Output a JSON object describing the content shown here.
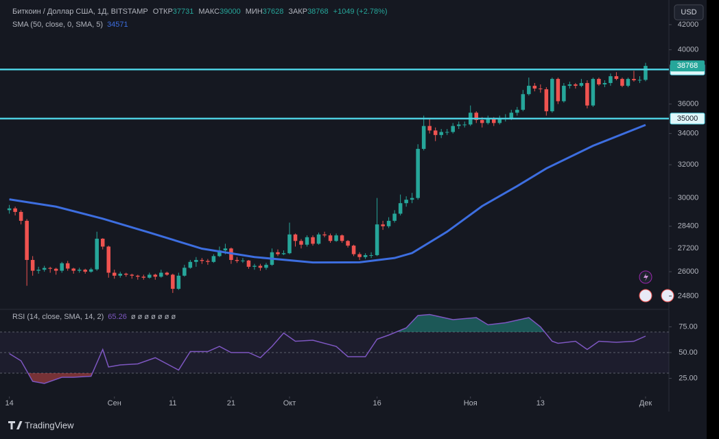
{
  "ui": {
    "currency_button": "USD",
    "brand": "TradingView"
  },
  "chart_data": [
    {
      "type": "candlestick",
      "title": "Биткоин / Доллар США, 1Д, BITSTAMP",
      "stats": [
        {
          "label": "ОТКР",
          "value": 37731
        },
        {
          "label": "МАКС",
          "value": 39000
        },
        {
          "label": "МИН",
          "value": 37628
        },
        {
          "label": "ЗАКР",
          "value": 38768
        }
      ],
      "change": {
        "value": 1049,
        "label": "+1049 (+2.78%)"
      },
      "xlim": [
        -1.6,
        113
      ],
      "xticks": [
        {
          "value": 0,
          "label": "14"
        },
        {
          "value": 18,
          "label": "Сен"
        },
        {
          "value": 28,
          "label": "11"
        },
        {
          "value": 38,
          "label": "21"
        },
        {
          "value": 48,
          "label": "Окт"
        },
        {
          "value": 63,
          "label": "16"
        },
        {
          "value": 79,
          "label": "Ноя"
        },
        {
          "value": 91,
          "label": "13"
        },
        {
          "value": 109,
          "label": "Дек"
        }
      ],
      "ylim": [
        24200,
        42900
      ],
      "log_scale": true,
      "grid": false,
      "yticks": [
        42000,
        40000,
        36000,
        34000,
        32000,
        30000,
        28400,
        27200,
        26000,
        24800
      ],
      "up_color": "#26a69a",
      "down_color": "#ef5350",
      "candles": [
        [
          29300,
          29600,
          29100,
          29400
        ],
        [
          29400,
          29500,
          29000,
          29200
        ],
        [
          29200,
          29300,
          28500,
          28700
        ],
        [
          28700,
          28800,
          25300,
          26600
        ],
        [
          26600,
          26800,
          25800,
          26050
        ],
        [
          26050,
          26250,
          25900,
          26100
        ],
        [
          26100,
          26300,
          26000,
          26190
        ],
        [
          26190,
          26250,
          25950,
          26150
        ],
        [
          26150,
          26200,
          25850,
          26050
        ],
        [
          26050,
          26500,
          25950,
          26430
        ],
        [
          26430,
          26550,
          26050,
          26160
        ],
        [
          26160,
          26200,
          25900,
          26050
        ],
        [
          26050,
          26200,
          25950,
          26100
        ],
        [
          26100,
          26150,
          25900,
          26000
        ],
        [
          26000,
          26200,
          25950,
          26120
        ],
        [
          26120,
          28100,
          26050,
          27720
        ],
        [
          27720,
          27750,
          27150,
          27300
        ],
        [
          27300,
          27350,
          25700,
          25950
        ],
        [
          25950,
          26100,
          25650,
          25800
        ],
        [
          25800,
          26000,
          25700,
          25900
        ],
        [
          25900,
          25950,
          25750,
          25850
        ],
        [
          25850,
          25900,
          25650,
          25800
        ],
        [
          25800,
          25850,
          25600,
          25750
        ],
        [
          25750,
          25850,
          25600,
          25700
        ],
        [
          25700,
          25950,
          25650,
          25850
        ],
        [
          25850,
          25900,
          25600,
          25750
        ],
        [
          25750,
          26100,
          25700,
          25950
        ],
        [
          25950,
          26000,
          25800,
          25850
        ],
        [
          25850,
          25900,
          24950,
          25150
        ],
        [
          25150,
          25950,
          25100,
          25800
        ],
        [
          25800,
          26350,
          25750,
          26200
        ],
        [
          26200,
          26600,
          26150,
          26500
        ],
        [
          26500,
          26750,
          26250,
          26600
        ],
        [
          26600,
          26700,
          26400,
          26550
        ],
        [
          26550,
          26650,
          26350,
          26500
        ],
        [
          26500,
          26900,
          26450,
          26800
        ],
        [
          26800,
          27300,
          26750,
          27100
        ],
        [
          27100,
          27450,
          26900,
          27200
        ],
        [
          27200,
          27250,
          26400,
          26600
        ],
        [
          26600,
          26750,
          26450,
          26550
        ],
        [
          26550,
          26700,
          26450,
          26570
        ],
        [
          26570,
          26600,
          26150,
          26250
        ],
        [
          26250,
          26400,
          26100,
          26300
        ],
        [
          26300,
          26400,
          26050,
          26200
        ],
        [
          26200,
          26450,
          26100,
          26350
        ],
        [
          26350,
          27200,
          26300,
          27000
        ],
        [
          27000,
          27150,
          26800,
          26900
        ],
        [
          26900,
          27100,
          26850,
          26950
        ],
        [
          26950,
          28600,
          26900,
          27950
        ],
        [
          27950,
          28000,
          27300,
          27600
        ],
        [
          27600,
          27700,
          27200,
          27400
        ],
        [
          27400,
          27900,
          27300,
          27800
        ],
        [
          27800,
          27900,
          27350,
          27450
        ],
        [
          27450,
          28050,
          27400,
          27950
        ],
        [
          27950,
          28100,
          27800,
          27900
        ],
        [
          27900,
          28000,
          27500,
          27600
        ],
        [
          27600,
          28000,
          27550,
          27900
        ],
        [
          27900,
          27950,
          27500,
          27600
        ],
        [
          27600,
          27650,
          27250,
          27350
        ],
        [
          27350,
          27400,
          26800,
          26900
        ],
        [
          26900,
          27000,
          26600,
          26750
        ],
        [
          26750,
          26950,
          26650,
          26850
        ],
        [
          26850,
          27000,
          26700,
          26850
        ],
        [
          26850,
          30000,
          26800,
          28500
        ],
        [
          28500,
          28700,
          28200,
          28400
        ],
        [
          28400,
          28900,
          28300,
          28700
        ],
        [
          28700,
          29300,
          28600,
          29100
        ],
        [
          29100,
          30200,
          29000,
          29700
        ],
        [
          29700,
          30100,
          29500,
          29900
        ],
        [
          29900,
          30300,
          29700,
          30000
        ],
        [
          30000,
          33300,
          29900,
          33000
        ],
        [
          33000,
          35200,
          32900,
          34500
        ],
        [
          34500,
          35000,
          34000,
          34200
        ],
        [
          34200,
          34400,
          33500,
          33900
        ],
        [
          33900,
          34300,
          33700,
          34100
        ],
        [
          34100,
          34300,
          33900,
          34100
        ],
        [
          34100,
          34700,
          34000,
          34500
        ],
        [
          34500,
          34800,
          34300,
          34600
        ],
        [
          34600,
          34800,
          34400,
          34600
        ],
        [
          34600,
          35900,
          34500,
          35400
        ],
        [
          35400,
          35500,
          34700,
          34900
        ],
        [
          34900,
          35100,
          34400,
          34700
        ],
        [
          34700,
          35200,
          34600,
          35000
        ],
        [
          35000,
          35100,
          34500,
          34700
        ],
        [
          34700,
          35200,
          34600,
          35000
        ],
        [
          35000,
          35300,
          34800,
          35000
        ],
        [
          35000,
          35600,
          34900,
          35400
        ],
        [
          35400,
          35800,
          35200,
          35600
        ],
        [
          35600,
          37000,
          35500,
          36700
        ],
        [
          36700,
          37900,
          36600,
          37300
        ],
        [
          37300,
          37500,
          36900,
          37100
        ],
        [
          37100,
          37400,
          36800,
          37050
        ],
        [
          37050,
          37200,
          35200,
          35500
        ],
        [
          35500,
          37900,
          35400,
          37800
        ],
        [
          37800,
          37900,
          36000,
          36200
        ],
        [
          36200,
          37500,
          36100,
          37300
        ],
        [
          37300,
          37600,
          37100,
          37400
        ],
        [
          37400,
          37500,
          37100,
          37300
        ],
        [
          37300,
          37800,
          37200,
          37500
        ],
        [
          37500,
          37700,
          35700,
          35900
        ],
        [
          35900,
          37900,
          35800,
          37800
        ],
        [
          37800,
          37900,
          37300,
          37400
        ],
        [
          37400,
          37700,
          37200,
          37500
        ],
        [
          37500,
          38200,
          37300,
          38000
        ],
        [
          38000,
          38300,
          37700,
          37800
        ],
        [
          37800,
          37900,
          37200,
          37300
        ],
        [
          37300,
          37900,
          37200,
          37800
        ],
        [
          37800,
          38400,
          37600,
          37700
        ],
        [
          37700,
          38000,
          37500,
          37731
        ],
        [
          37731,
          39000,
          37628,
          38768
        ]
      ],
      "sma": {
        "name": "SMA (50, close, 0, SMA, 5)",
        "last_value": 34571,
        "color": "#3d6ee0",
        "x": [
          0,
          8,
          16,
          24,
          33,
          42,
          52,
          60,
          66,
          69,
          75,
          81,
          87,
          92,
          100,
          109
        ],
        "values": [
          29920,
          29500,
          28820,
          28050,
          27190,
          26750,
          26470,
          26480,
          26700,
          26960,
          28100,
          29530,
          30700,
          31770,
          33200,
          34571
        ]
      },
      "levels": [
        {
          "value": 38500,
          "color": "#4dd0e1"
        },
        {
          "value": 35000,
          "color": "#4dd0e1"
        }
      ],
      "last_price": 38768
    },
    {
      "type": "line",
      "title": "RSI (14, close, SMA, 14, 2)",
      "last_value": 65.26,
      "placeholders": "ø ø ø ø ø ø ø",
      "xlim": [
        -1.6,
        113
      ],
      "ylim": [
        10,
        90
      ],
      "yticks": [
        {
          "value": 75,
          "label": "75.00"
        },
        {
          "value": 50,
          "label": "50.00"
        },
        {
          "value": 25,
          "label": "25.00"
        }
      ],
      "levels": [
        30,
        50,
        70
      ],
      "series": [
        {
          "color": "#7e57c2",
          "x": [
            0,
            2,
            4,
            6,
            9,
            11,
            14,
            16,
            17,
            19,
            22,
            25,
            29,
            31,
            34,
            36,
            38,
            41,
            43,
            45,
            47,
            49,
            52,
            56,
            58,
            61,
            63,
            65,
            68,
            70,
            72,
            76,
            80,
            82,
            85,
            89,
            91,
            93,
            94,
            97,
            99,
            101,
            104,
            107,
            109
          ],
          "values": [
            49,
            42,
            22,
            20,
            26,
            26,
            27,
            53,
            36,
            38,
            39,
            45,
            33,
            51,
            51,
            56,
            50,
            50,
            45,
            56,
            69,
            61,
            62,
            56,
            46,
            46,
            63,
            67,
            74,
            86,
            87,
            82,
            84,
            77,
            79,
            84,
            75,
            61,
            59,
            61,
            53,
            61,
            60,
            61,
            66
          ]
        }
      ]
    }
  ]
}
